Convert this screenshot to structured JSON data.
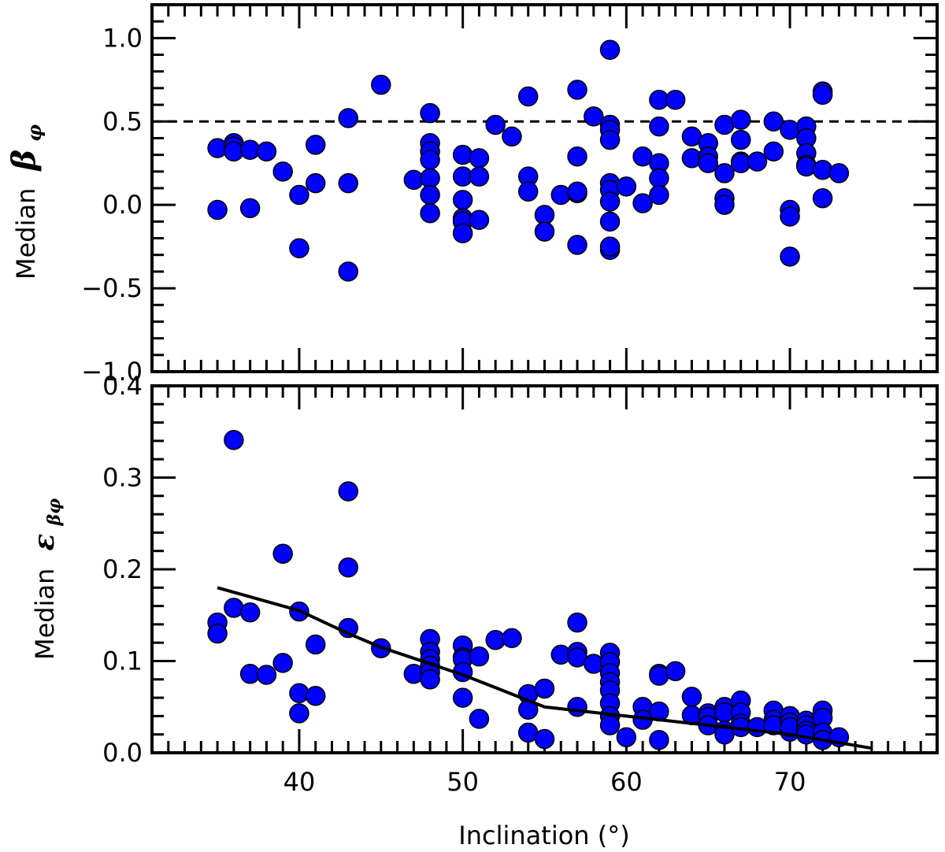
{
  "chart_data": [
    {
      "type": "scatter",
      "panel": "top",
      "xlim": [
        31,
        79
      ],
      "ylim": [
        -1.0,
        1.2
      ],
      "ylabel": "Median",
      "ylabel_symbol": "β",
      "ylabel_sub": "φ",
      "yticks": [
        -1.0,
        -0.5,
        0.0,
        0.5,
        1.0
      ],
      "ytick_labels": [
        "−1.0",
        "−0.5",
        "0.0",
        "0.5",
        "1.0"
      ],
      "reference_line": {
        "y": 0.5,
        "style": "dashed"
      },
      "x": [
        35,
        35,
        36,
        36,
        36,
        37,
        37,
        38,
        39,
        40,
        40,
        41,
        41,
        43,
        43,
        43,
        45,
        47,
        48,
        48,
        48,
        48,
        48,
        48,
        48,
        50,
        50,
        50,
        50,
        50,
        50,
        51,
        51,
        51,
        52,
        53,
        54,
        54,
        54,
        55,
        55,
        56,
        57,
        57,
        57,
        57,
        57,
        58,
        59,
        59,
        59,
        59,
        59,
        59,
        59,
        59,
        59,
        59,
        60,
        61,
        61,
        62,
        62,
        62,
        62,
        62,
        63,
        64,
        64,
        65,
        65,
        65,
        66,
        66,
        66,
        66,
        67,
        67,
        67,
        67,
        68,
        69,
        69,
        70,
        70,
        70,
        70,
        71,
        71,
        71,
        71,
        71,
        72,
        72,
        72,
        72,
        73
      ],
      "y": [
        0.34,
        -0.03,
        0.37,
        0.35,
        0.32,
        0.33,
        -0.02,
        0.32,
        0.2,
        0.06,
        -0.26,
        0.36,
        0.13,
        0.52,
        0.13,
        -0.4,
        0.72,
        0.15,
        0.55,
        0.37,
        0.32,
        0.27,
        0.16,
        0.06,
        -0.05,
        0.3,
        0.17,
        0.03,
        -0.08,
        -0.1,
        -0.17,
        0.28,
        0.17,
        -0.09,
        0.48,
        0.41,
        0.65,
        0.17,
        0.08,
        -0.06,
        -0.16,
        0.06,
        0.69,
        0.29,
        0.07,
        0.08,
        -0.24,
        0.53,
        0.93,
        0.48,
        0.45,
        0.39,
        0.13,
        0.09,
        0.02,
        -0.1,
        -0.27,
        -0.25,
        0.11,
        0.29,
        0.01,
        0.63,
        0.47,
        0.25,
        0.16,
        0.06,
        0.63,
        0.41,
        0.28,
        0.37,
        0.29,
        0.25,
        0.48,
        0.19,
        0.04,
        0.0,
        0.51,
        0.39,
        0.26,
        0.25,
        0.26,
        0.5,
        0.32,
        0.45,
        -0.03,
        -0.07,
        -0.31,
        0.47,
        0.4,
        0.31,
        0.24,
        0.23,
        0.68,
        0.66,
        0.21,
        0.04,
        0.19
      ]
    },
    {
      "type": "scatter",
      "panel": "bottom",
      "xlim": [
        31,
        79
      ],
      "ylim": [
        0.0,
        0.4
      ],
      "xlabel": "Inclination (°)",
      "xticks": [
        40,
        50,
        60,
        70
      ],
      "xtick_labels": [
        "40",
        "50",
        "60",
        "70"
      ],
      "ylabel": "Median",
      "ylabel_symbol": "ε",
      "ylabel_sub": "βφ",
      "yticks": [
        0.0,
        0.1,
        0.2,
        0.3,
        0.4
      ],
      "ytick_labels": [
        "0.0",
        "0.1",
        "0.2",
        "0.3",
        "0.4"
      ],
      "x": [
        35,
        35,
        36,
        36,
        37,
        37,
        38,
        39,
        39,
        40,
        40,
        40,
        41,
        41,
        43,
        43,
        43,
        45,
        47,
        48,
        48,
        48,
        48,
        48,
        48,
        50,
        50,
        50,
        50,
        50,
        51,
        51,
        52,
        53,
        54,
        54,
        54,
        55,
        55,
        56,
        57,
        57,
        57,
        57,
        58,
        59,
        59,
        59,
        59,
        59,
        59,
        59,
        59,
        60,
        61,
        61,
        62,
        62,
        62,
        62,
        63,
        64,
        64,
        65,
        65,
        65,
        66,
        66,
        66,
        66,
        67,
        67,
        67,
        67,
        68,
        69,
        69,
        69,
        70,
        70,
        70,
        70,
        71,
        71,
        71,
        71,
        72,
        72,
        72,
        72,
        73
      ],
      "y": [
        0.142,
        0.13,
        0.341,
        0.158,
        0.153,
        0.086,
        0.085,
        0.217,
        0.098,
        0.154,
        0.065,
        0.043,
        0.118,
        0.062,
        0.285,
        0.202,
        0.136,
        0.114,
        0.086,
        0.124,
        0.11,
        0.102,
        0.095,
        0.088,
        0.08,
        0.117,
        0.104,
        0.102,
        0.088,
        0.06,
        0.105,
        0.037,
        0.123,
        0.125,
        0.064,
        0.047,
        0.022,
        0.07,
        0.015,
        0.107,
        0.142,
        0.11,
        0.104,
        0.05,
        0.097,
        0.109,
        0.099,
        0.087,
        0.077,
        0.068,
        0.054,
        0.04,
        0.03,
        0.017,
        0.05,
        0.036,
        0.086,
        0.084,
        0.045,
        0.014,
        0.089,
        0.061,
        0.041,
        0.043,
        0.039,
        0.03,
        0.05,
        0.044,
        0.024,
        0.02,
        0.057,
        0.044,
        0.032,
        0.028,
        0.028,
        0.046,
        0.036,
        0.03,
        0.04,
        0.033,
        0.023,
        0.028,
        0.035,
        0.03,
        0.024,
        0.02,
        0.046,
        0.038,
        0.022,
        0.014,
        0.017
      ],
      "trend_line": {
        "x": [
          35,
          40,
          43,
          45,
          50,
          55,
          60,
          65,
          70,
          75
        ],
        "y": [
          0.18,
          0.155,
          0.13,
          0.115,
          0.085,
          0.05,
          0.04,
          0.03,
          0.02,
          0.005
        ]
      }
    }
  ]
}
